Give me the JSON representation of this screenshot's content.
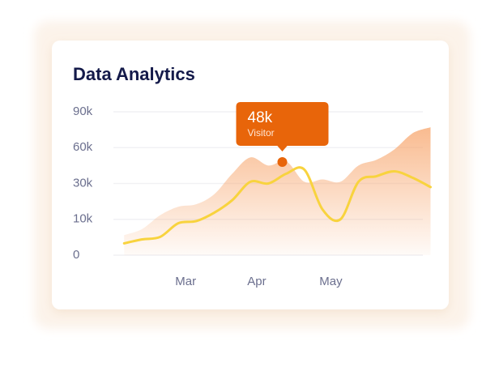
{
  "chart_data": {
    "type": "line",
    "title": "Data Analytics",
    "categories": [
      null,
      null,
      null,
      null,
      null,
      "Mar",
      null,
      null,
      null,
      "Apr",
      null,
      null,
      null,
      "May",
      null,
      null,
      null,
      null,
      null
    ],
    "yticks": [
      0,
      {
        "value": 10000,
        "label": "10k"
      },
      {
        "value": 30000,
        "label": "30k"
      },
      {
        "value": 60000,
        "label": "60k"
      },
      {
        "value": 90000,
        "label": "90k"
      }
    ],
    "grid": true,
    "series": [
      {
        "style": "area",
        "color": "#f7a46a",
        "values": [
          null,
          5600,
          7300,
          12300,
          17000,
          18400,
          24000,
          38200,
          51800,
          45000,
          48400,
          31400,
          33400,
          31400,
          45000,
          49800,
          58600,
          72000,
          77000
        ]
      },
      {
        "style": "line",
        "color": "#f8d33e",
        "values": [
          null,
          3300,
          4400,
          5100,
          8900,
          9500,
          13700,
          20700,
          31400,
          30000,
          38200,
          41600,
          15600,
          10000,
          31400,
          36100,
          40200,
          34800,
          28000
        ]
      }
    ],
    "highlight": {
      "index": 10,
      "value": 48000,
      "label": "48k",
      "note": "Visitor",
      "color": "#e8650a"
    }
  }
}
